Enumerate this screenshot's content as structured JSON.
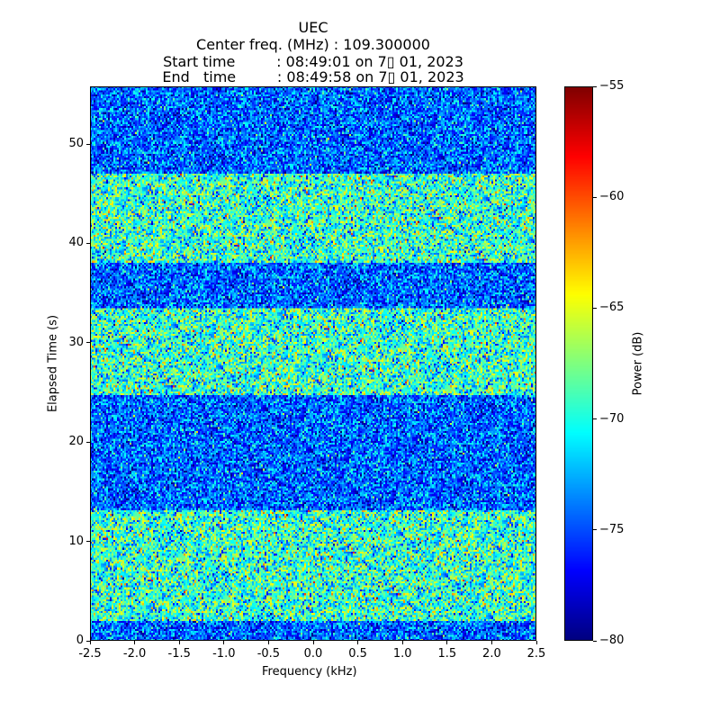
{
  "chart_data": {
    "type": "heatmap",
    "title_lines": [
      "UEC",
      "Center freq. (MHz) : 109.300000",
      "Start time         : 08:49:01 on 7▯ 01, 2023",
      "End   time         : 08:49:58 on 7▯ 01, 2023"
    ],
    "xlabel": "Frequency (kHz)",
    "ylabel": "Elapsed Time (s)",
    "xlim": [
      -2.5,
      2.5
    ],
    "ylim": [
      0,
      55.8
    ],
    "xticks": [
      "-2.5",
      "-2.0",
      "-1.5",
      "-1.0",
      "-0.5",
      "0.0",
      "0.5",
      "1.0",
      "1.5",
      "2.0",
      "2.5"
    ],
    "yticks": [
      "0",
      "10",
      "20",
      "30",
      "40",
      "50"
    ],
    "colorbar": {
      "label": "Power (dB)",
      "range": [
        -80,
        -55
      ],
      "ticks": [
        "−80",
        "−75",
        "−70",
        "−65",
        "−60",
        "−55"
      ],
      "colormap": "jet"
    },
    "time_segments": [
      {
        "start": 0,
        "end": 2,
        "level": "low",
        "mean_db": -74.5
      },
      {
        "start": 2,
        "end": 13.2,
        "level": "high",
        "mean_db": -69.5
      },
      {
        "start": 13.2,
        "end": 24.8,
        "level": "low",
        "mean_db": -74.5
      },
      {
        "start": 24.8,
        "end": 33.5,
        "level": "high",
        "mean_db": -69.5
      },
      {
        "start": 33.5,
        "end": 38,
        "level": "low",
        "mean_db": -74.5
      },
      {
        "start": 38,
        "end": 47,
        "level": "high",
        "mean_db": -69.5
      },
      {
        "start": 47,
        "end": 55.8,
        "level": "low",
        "mean_db": -74.5
      }
    ]
  }
}
